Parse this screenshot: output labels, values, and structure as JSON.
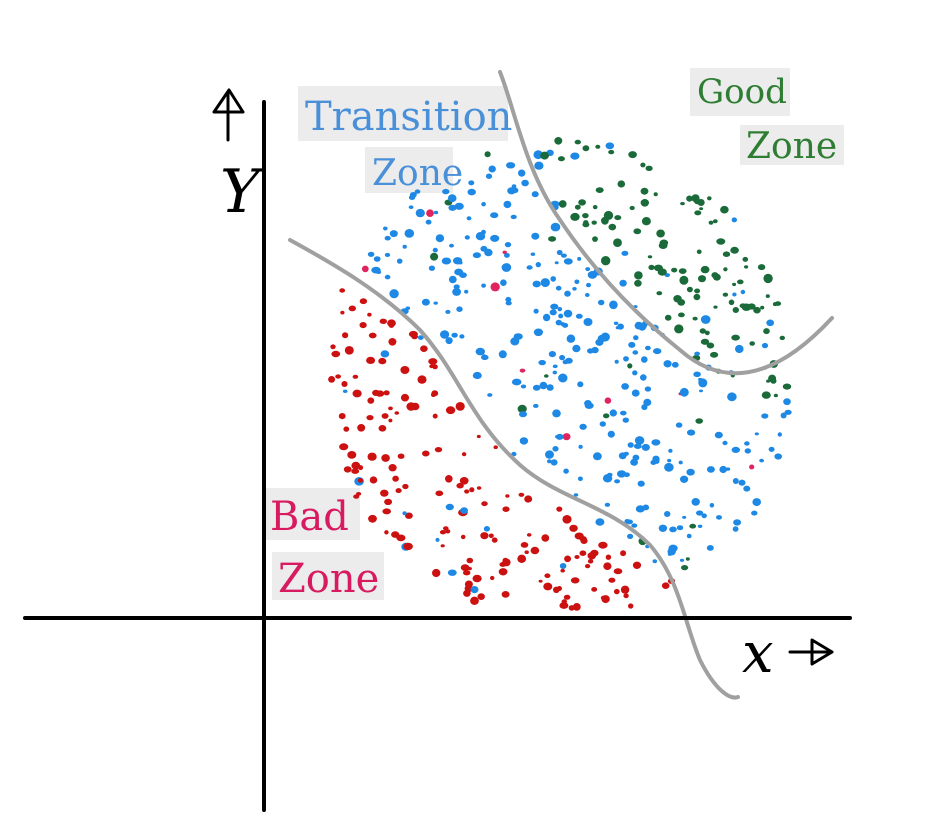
{
  "axes": {
    "x_label": "x",
    "y_label": "Y"
  },
  "zones": {
    "transition": {
      "line1": "Transition",
      "line2": "Zone",
      "color": "#4a90d9"
    },
    "good": {
      "line1": "Good",
      "line2": "Zone",
      "color": "#2e7d32"
    },
    "bad": {
      "line1": "Bad",
      "line2": "Zone",
      "color": "#d81b60"
    }
  },
  "colors": {
    "axis": "#000000",
    "boundary": "#a0a0a0",
    "transition_dots": "#1e88e5",
    "good_dots": "#1b6b3a",
    "bad_dots": "#cc1111",
    "label_bg": "#ececec"
  }
}
